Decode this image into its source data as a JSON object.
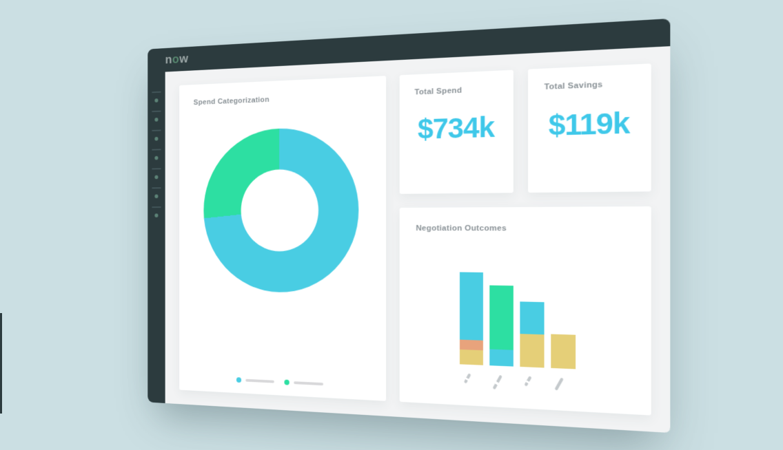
{
  "window": {
    "brand": {
      "letter_n": "n",
      "letter_o": "o",
      "letter_w": "w"
    },
    "sidebar": {
      "dot_count": 7
    }
  },
  "cards": {
    "spend_categorization": {
      "title": "Spend Categorization"
    },
    "total_spend": {
      "title": "Total Spend",
      "value": "$734k"
    },
    "total_savings": {
      "title": "Total Savings",
      "value": "$119k"
    },
    "negotiation_outcomes": {
      "title": "Negotiation Outcomes"
    }
  },
  "chart_data": [
    {
      "type": "pie",
      "subtype": "donut",
      "title": "Spend Categorization",
      "hole_ratio": 0.5,
      "start_angle_deg": 0,
      "segments": [
        {
          "name": "segment-1",
          "color": "cyan_chart",
          "percent": 73.5
        },
        {
          "name": "segment-2",
          "color": "green_chart",
          "percent": 26.5
        }
      ],
      "legend": [
        {
          "name": "legend-1",
          "color": "cyan_chart",
          "label_placeholder": true
        },
        {
          "name": "legend-2",
          "color": "green_chart",
          "label_placeholder": true
        }
      ],
      "legend_position": "bottom"
    },
    {
      "type": "bar",
      "stacked": true,
      "title": "Negotiation Outcomes",
      "value_unit": "relative-px",
      "ylim": [
        0,
        140
      ],
      "x_labels_placeholder": true,
      "bars": [
        {
          "segments": [
            {
              "color": "yellow_chart",
              "value": 21
            },
            {
              "color": "orange_chart",
              "value": 14
            },
            {
              "color": "cyan_chart",
              "value": 96
            }
          ]
        },
        {
          "segments": [
            {
              "color": "cyan_chart",
              "value": 23
            },
            {
              "color": "green_chart",
              "value": 90
            }
          ]
        },
        {
          "segments": [
            {
              "color": "yellow_chart",
              "value": 46
            },
            {
              "color": "cyan_chart",
              "value": 45
            }
          ]
        },
        {
          "segments": [
            {
              "color": "yellow_chart",
              "value": 47
            }
          ]
        }
      ],
      "ticks": [
        {
          "h": 15,
          "dashed": true
        },
        {
          "h": 22,
          "dashed": true
        },
        {
          "h": 15,
          "dashed": true
        },
        {
          "h": 19,
          "dashed": false
        }
      ]
    }
  ],
  "colors": {
    "page_bg": "#cbdfe3",
    "window_dark": "#2c3b3e",
    "content_bg": "#f2f3f4",
    "card_bg": "#ffffff",
    "title_gray": "#8a9297",
    "value_cyan": "#3fc8e9",
    "cyan_chart": "#49cde3",
    "green_chart": "#2ddfa2",
    "yellow_chart": "#e5cf78",
    "orange_chart": "#e8a37c",
    "legend_bar_gray": "#d8d8da",
    "tick_gray": "#c4c9cc",
    "sidebar_dot": "#5c8276",
    "sidebar_line": "#43565a",
    "logo_gray": "#9aa5a5",
    "logo_green": "#57876f"
  }
}
